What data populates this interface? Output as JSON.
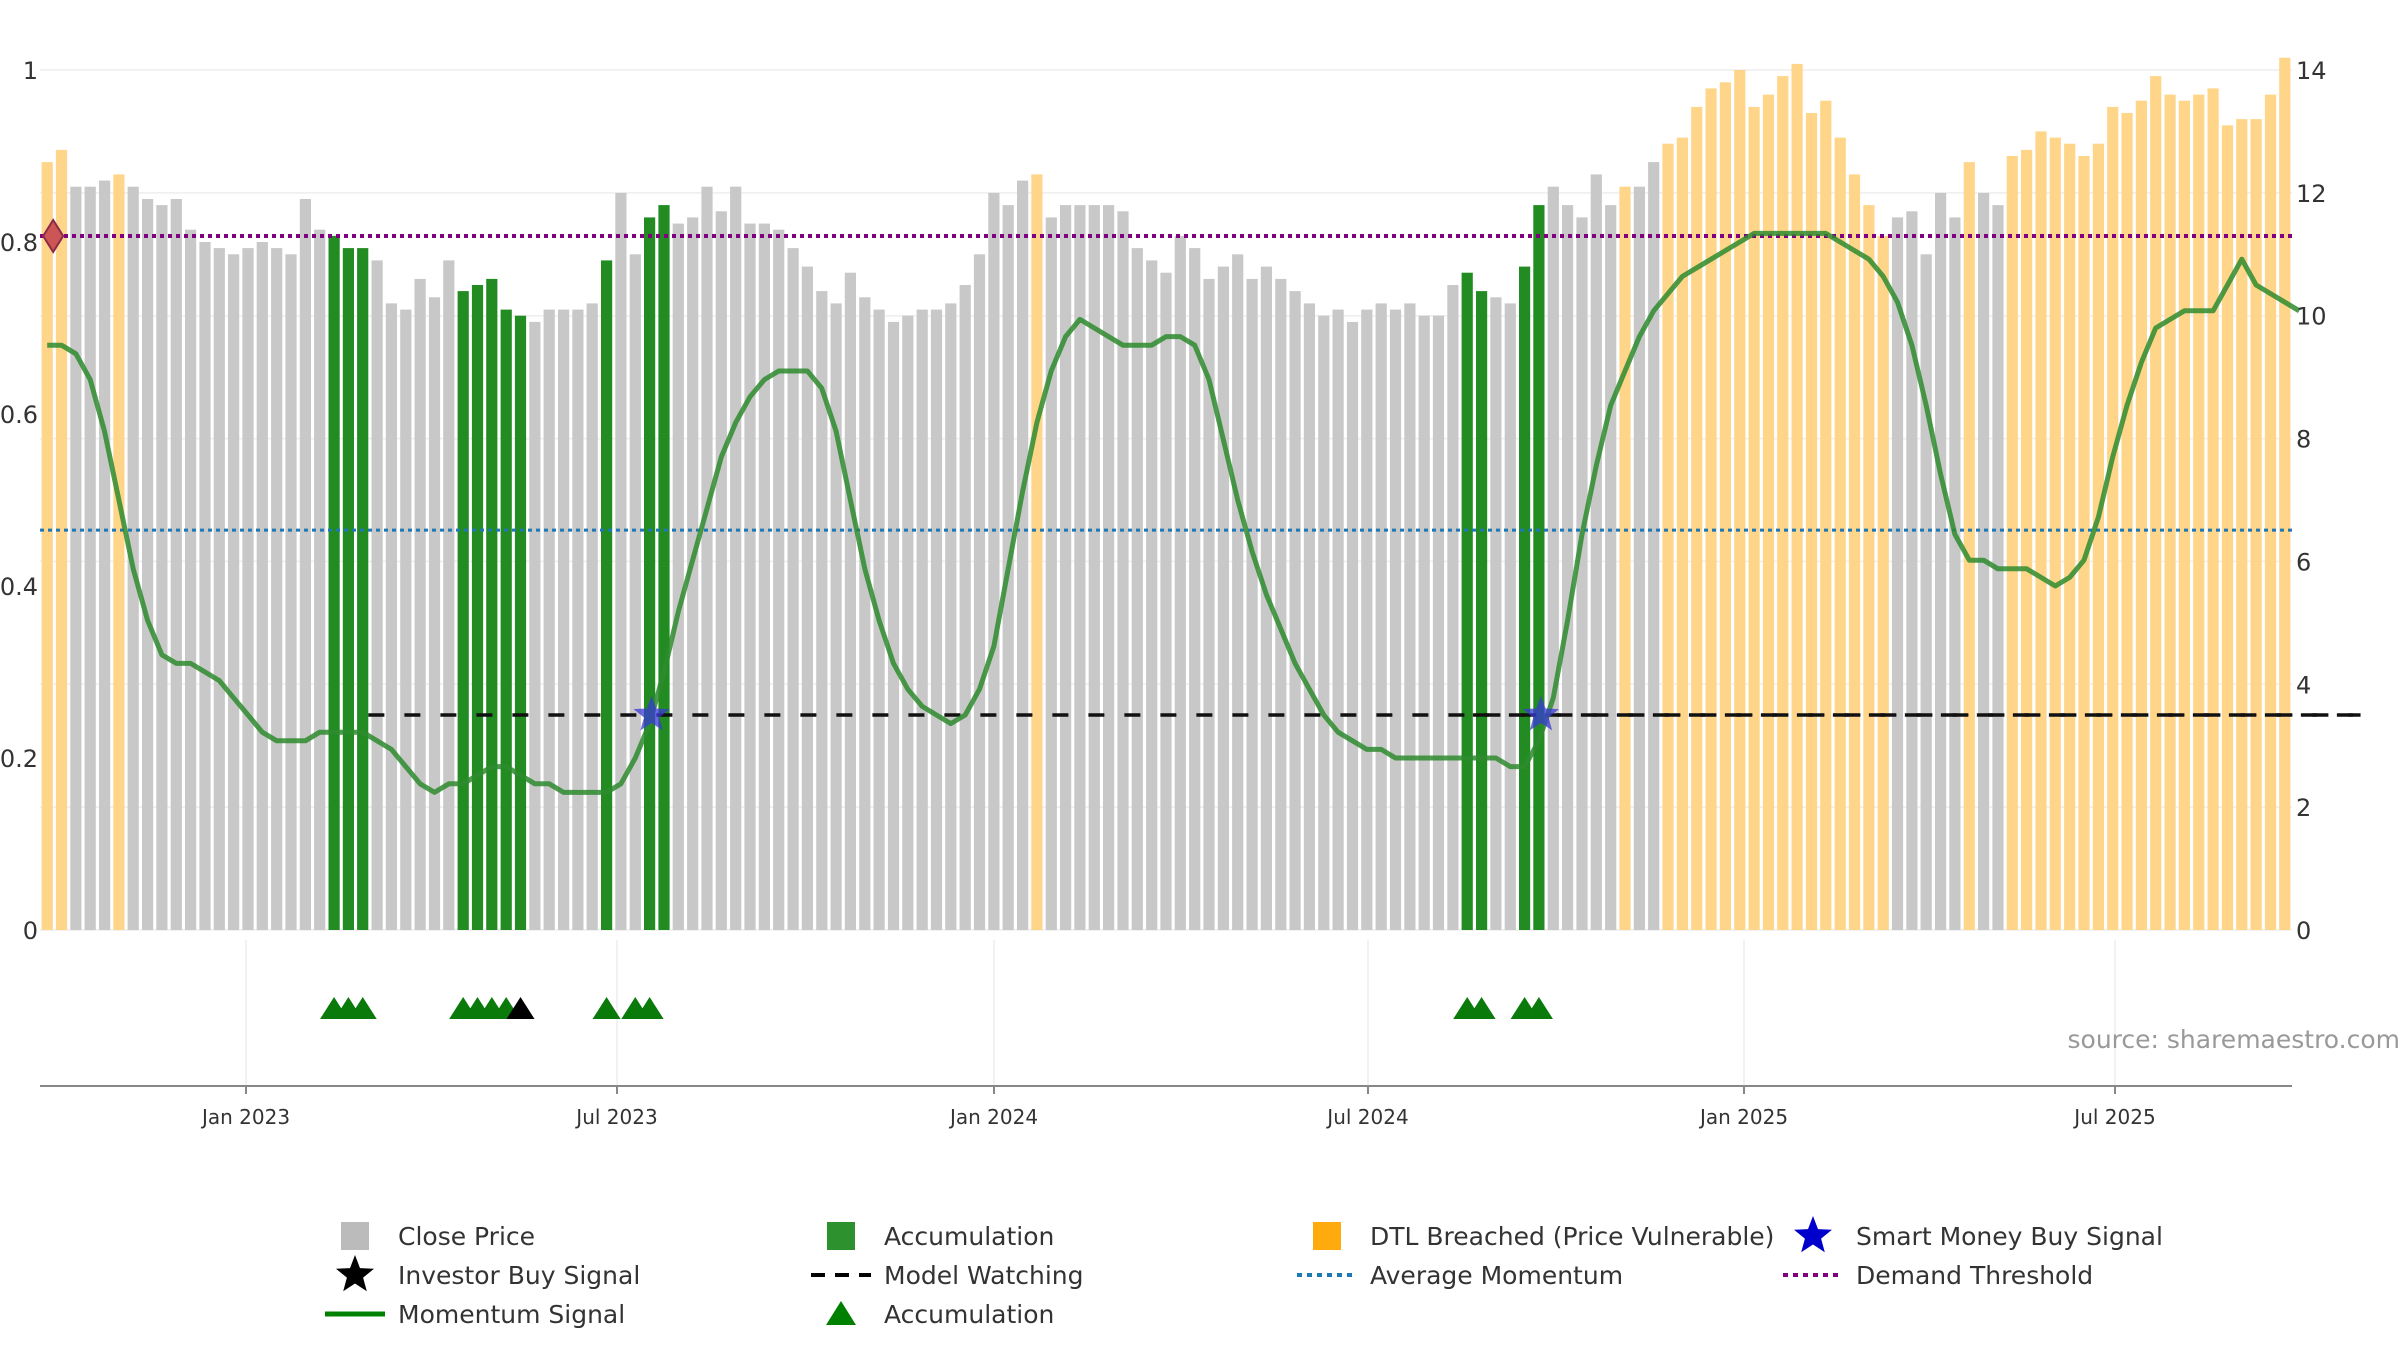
{
  "chart_data": {
    "type": "bar",
    "source_label": "source: sharemaestro.com",
    "y_left": {
      "ticks": [
        "0",
        "0.2",
        "0.4",
        "0.6",
        "0.8",
        "1"
      ],
      "range": [
        0,
        1
      ]
    },
    "y_right": {
      "ticks": [
        "0",
        "2",
        "4",
        "6",
        "8",
        "10",
        "12",
        "14"
      ],
      "range": [
        0,
        14
      ]
    },
    "x_axis": {
      "ticks": [
        "Jan 2023",
        "Jul 2023",
        "Jan 2024",
        "Jul 2024",
        "Jan 2025",
        "Jul 2025"
      ],
      "range": [
        "2022-10",
        "2025-10"
      ]
    },
    "legend": [
      {
        "label": "Close Price",
        "symbol": "square",
        "color": "#bbbbbb"
      },
      {
        "label": "Accumulation",
        "symbol": "square",
        "color": "#228b22"
      },
      {
        "label": "DTL Breached (Price Vulnerable)",
        "symbol": "square",
        "color": "#ffa500"
      },
      {
        "label": "Smart Money Buy Signal",
        "symbol": "star",
        "color": "#0000cc"
      },
      {
        "label": "Investor Buy Signal",
        "symbol": "star",
        "color": "#000000"
      },
      {
        "label": "Model Watching",
        "symbol": "dash",
        "color": "#000000"
      },
      {
        "label": "Average Momentum",
        "symbol": "dot",
        "color": "#1f77b4"
      },
      {
        "label": "Demand Threshold",
        "symbol": "dot",
        "color": "#800080"
      },
      {
        "label": "Momentum Signal",
        "symbol": "line",
        "color": "#008000"
      },
      {
        "label": "Accumulation",
        "symbol": "triangle",
        "color": "#008000"
      }
    ],
    "colors": {
      "grey": "#c8c8c8",
      "green": "#228b22",
      "orange": "#ffd58a",
      "momentum": "#2e8b2e",
      "threshold": "#800080",
      "average": "#1f77b4"
    },
    "demand_threshold": 0.807,
    "average_momentum": 0.465,
    "model_watching_level": 0.25,
    "model_watching_segments": [
      [
        21,
        161
      ],
      [
        98,
        161
      ]
    ],
    "price_series": {
      "name": "Close Price",
      "values": [
        12.5,
        12.7,
        12.1,
        12.1,
        12.2,
        12.3,
        12.1,
        11.9,
        11.8,
        11.9,
        11.4,
        11.2,
        11.1,
        11.0,
        11.1,
        11.2,
        11.1,
        11.0,
        11.9,
        11.4,
        11.3,
        11.1,
        11.1,
        10.9,
        10.2,
        10.1,
        10.6,
        10.3,
        10.9,
        10.4,
        10.5,
        10.6,
        10.1,
        10.0,
        9.9,
        10.1,
        10.1,
        10.1,
        10.2,
        10.9,
        12.0,
        11.0,
        11.6,
        11.8,
        11.5,
        11.6,
        12.1,
        11.7,
        12.1,
        11.5,
        11.5,
        11.4,
        11.1,
        10.8,
        10.4,
        10.2,
        10.7,
        10.3,
        10.1,
        9.9,
        10.0,
        10.1,
        10.1,
        10.2,
        10.5,
        11.0,
        12.0,
        11.8,
        12.2,
        12.3,
        11.6,
        11.8,
        11.8,
        11.8,
        11.8,
        11.7,
        11.1,
        10.9,
        10.7,
        11.3,
        11.1,
        10.6,
        10.8,
        11.0,
        10.6,
        10.8,
        10.6,
        10.4,
        10.2,
        10.0,
        10.1,
        9.9,
        10.1,
        10.2,
        10.1,
        10.2,
        10.0,
        10.0,
        10.5,
        10.7,
        10.4,
        10.3,
        10.2,
        10.8,
        11.8,
        12.1,
        11.8,
        11.6,
        12.3,
        11.8,
        12.1,
        12.1,
        12.5,
        12.8,
        12.9,
        13.4,
        13.7,
        13.8,
        14.0,
        13.4,
        13.6,
        13.9,
        14.1,
        13.3,
        13.5,
        12.9,
        12.3,
        11.8,
        11.3,
        11.6,
        11.7,
        11.0,
        12.0,
        11.6,
        12.5,
        12.0,
        11.8,
        12.6,
        12.7,
        13.0,
        12.9,
        12.8,
        12.6,
        12.8,
        13.4,
        13.3,
        13.5,
        13.9,
        13.6,
        13.5,
        13.6,
        13.7,
        13.1,
        13.2,
        13.2,
        13.6,
        14.2
      ],
      "colors": "per-bar: see category_ranges",
      "category_ranges": {
        "DTL Breached": [
          [
            0,
            1
          ],
          [
            5,
            5
          ],
          [
            69,
            69
          ],
          [
            110,
            110
          ],
          [
            113,
            128
          ],
          [
            134,
            134
          ],
          [
            137,
            157
          ]
        ],
        "Accumulation": [
          [
            20,
            22
          ],
          [
            29,
            33
          ],
          [
            39,
            39
          ],
          [
            42,
            43
          ],
          [
            99,
            100
          ],
          [
            103,
            104
          ]
        ]
      }
    },
    "momentum_series": {
      "name": "Momentum Signal",
      "values": [
        0.68,
        0.68,
        0.67,
        0.64,
        0.58,
        0.5,
        0.42,
        0.36,
        0.32,
        0.31,
        0.31,
        0.3,
        0.29,
        0.27,
        0.25,
        0.23,
        0.22,
        0.22,
        0.22,
        0.23,
        0.23,
        0.23,
        0.23,
        0.22,
        0.21,
        0.19,
        0.17,
        0.16,
        0.17,
        0.17,
        0.18,
        0.19,
        0.19,
        0.18,
        0.17,
        0.17,
        0.16,
        0.16,
        0.16,
        0.16,
        0.17,
        0.2,
        0.24,
        0.3,
        0.37,
        0.43,
        0.49,
        0.55,
        0.59,
        0.62,
        0.64,
        0.65,
        0.65,
        0.65,
        0.63,
        0.58,
        0.5,
        0.42,
        0.36,
        0.31,
        0.28,
        0.26,
        0.25,
        0.24,
        0.25,
        0.28,
        0.33,
        0.42,
        0.51,
        0.59,
        0.65,
        0.69,
        0.71,
        0.7,
        0.69,
        0.68,
        0.68,
        0.68,
        0.69,
        0.69,
        0.68,
        0.64,
        0.57,
        0.5,
        0.44,
        0.39,
        0.35,
        0.31,
        0.28,
        0.25,
        0.23,
        0.22,
        0.21,
        0.21,
        0.2,
        0.2,
        0.2,
        0.2,
        0.2,
        0.2,
        0.2,
        0.2,
        0.19,
        0.19,
        0.22,
        0.27,
        0.36,
        0.46,
        0.54,
        0.61,
        0.65,
        0.69,
        0.72,
        0.74,
        0.76,
        0.77,
        0.78,
        0.79,
        0.8,
        0.81,
        0.81,
        0.81,
        0.81,
        0.81,
        0.81,
        0.8,
        0.79,
        0.78,
        0.76,
        0.73,
        0.68,
        0.61,
        0.53,
        0.46,
        0.43,
        0.43,
        0.42,
        0.42,
        0.42,
        0.41,
        0.4,
        0.41,
        0.43,
        0.48,
        0.55,
        0.61,
        0.66,
        0.7,
        0.71,
        0.72,
        0.72,
        0.72,
        0.75,
        0.78,
        0.75,
        0.74,
        0.73,
        0.72
      ]
    },
    "smart_money_buy_signals": [
      {
        "index": 42,
        "value": 0.25
      },
      {
        "index": 104,
        "value": 0.25
      }
    ],
    "diamond_marker": {
      "index": 0,
      "value": 0.807
    },
    "accumulation_markers": [
      20,
      21,
      22,
      29,
      30,
      31,
      32,
      39,
      41,
      42,
      99,
      100,
      103,
      104
    ],
    "investor_buy_markers": [
      33
    ]
  }
}
